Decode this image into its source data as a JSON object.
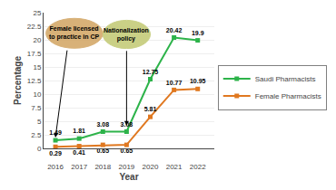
{
  "chart_data": {
    "type": "line",
    "x": [
      2016,
      2017,
      2018,
      2019,
      2020,
      2021,
      2022
    ],
    "series": [
      {
        "name": "Saudi Pharmacists",
        "color": "#2db34a",
        "marker": "square",
        "values": [
          1.49,
          1.81,
          3.08,
          3.08,
          12.75,
          20.42,
          19.9
        ]
      },
      {
        "name": "Female Pharmacists",
        "color": "#e07820",
        "marker": "square",
        "values": [
          0.29,
          0.41,
          0.65,
          0.65,
          5.81,
          10.77,
          10.95
        ]
      }
    ],
    "xlabel": "Year",
    "ylabel": "Percentage",
    "xlim": [
      2015.5,
      2022.7
    ],
    "xticks": [
      2016,
      2017,
      2018,
      2019,
      2020,
      2021,
      2022
    ],
    "ylim": [
      0,
      25
    ],
    "yticks": [
      0,
      2.5,
      5,
      7.5,
      10,
      12.5,
      15,
      17.5,
      20,
      22.5,
      25
    ],
    "grid": true,
    "legend": "right",
    "data_labels": true,
    "annotations": [
      {
        "text": "Female licensed\nto practice in CP",
        "color": "#d4a96a"
      },
      {
        "text": "Nationalization\npolicy",
        "color": "#c5cc7a"
      }
    ]
  }
}
